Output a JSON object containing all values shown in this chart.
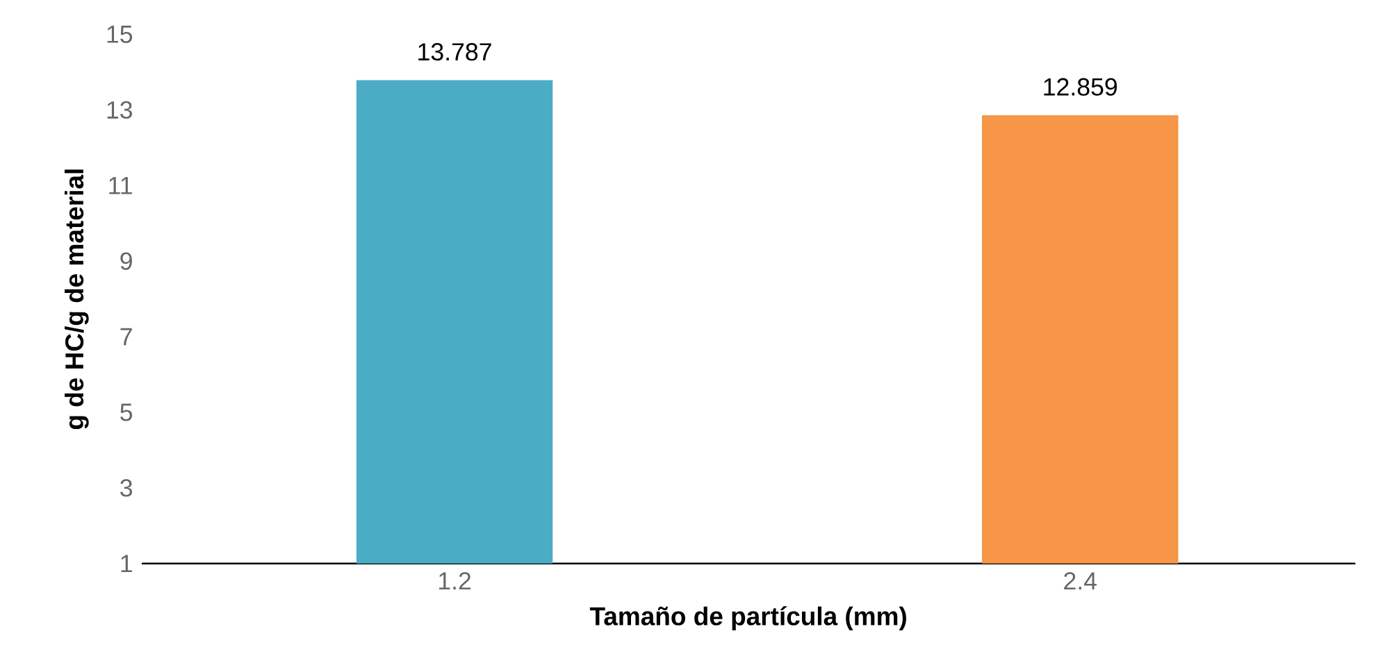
{
  "chart_data": {
    "type": "bar",
    "xlabel": "Tamaño de partícula (mm)",
    "ylabel": "g de HC/g de material",
    "categories": [
      "1.2",
      "2.4"
    ],
    "values": [
      13.787,
      12.859
    ],
    "colors": [
      "#4bacc6",
      "#f79646"
    ],
    "ylim": [
      1,
      15
    ],
    "yticks": [
      1,
      3,
      5,
      7,
      9,
      11,
      13,
      15
    ],
    "data_labels": true
  }
}
